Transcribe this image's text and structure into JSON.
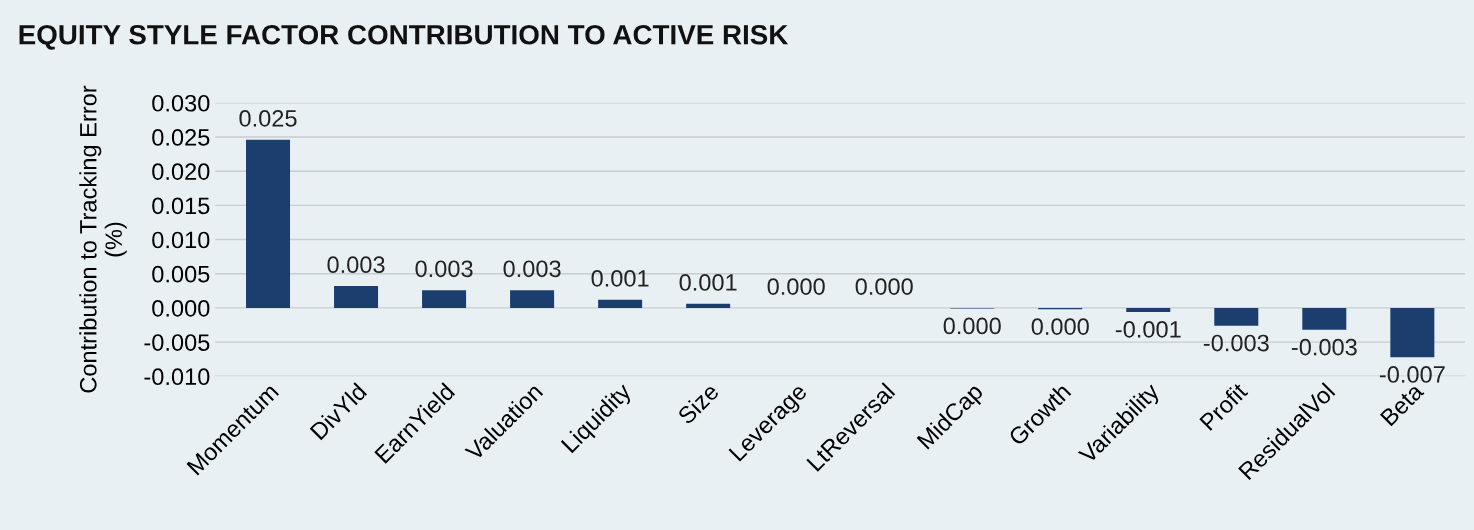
{
  "chart_data": {
    "type": "bar",
    "title": "EQUITY STYLE FACTOR CONTRIBUTION TO ACTIVE RISK",
    "ylabel": "Contribution to Tracking Error\n(%)",
    "categories": [
      "Momentum",
      "DivYld",
      "EarnYield",
      "Valuation",
      "Liquidity",
      "Size",
      "Leverage",
      "LtReversal",
      "MidCap",
      "Growth",
      "Variability",
      "Profit",
      "ResidualVol",
      "Beta"
    ],
    "values": [
      0.0246,
      0.0032,
      0.0026,
      0.0026,
      0.0012,
      0.0006,
      0.0,
      0.0,
      -0.0001,
      -0.0002,
      -0.0006,
      -0.0026,
      -0.0032,
      -0.0072
    ],
    "value_labels": [
      "0.025",
      "0.003",
      "0.003",
      "0.003",
      "0.001",
      "0.001",
      "0.000",
      "0.000",
      "0.000",
      "0.000",
      "-0.001",
      "-0.003",
      "-0.003",
      "-0.007"
    ],
    "color": "#1b3e6f",
    "ylim": [
      -0.01,
      0.03
    ],
    "yticks": [
      {
        "value": -0.01,
        "label": "-0.010"
      },
      {
        "value": -0.005,
        "label": "-0.005"
      },
      {
        "value": 0.0,
        "label": "0.000"
      },
      {
        "value": 0.005,
        "label": "0.005"
      },
      {
        "value": 0.01,
        "label": "0.010"
      },
      {
        "value": 0.015,
        "label": "0.015"
      },
      {
        "value": 0.02,
        "label": "0.020"
      },
      {
        "value": 0.025,
        "label": "0.025"
      },
      {
        "value": 0.03,
        "label": "0.030"
      }
    ],
    "grid": "y"
  }
}
